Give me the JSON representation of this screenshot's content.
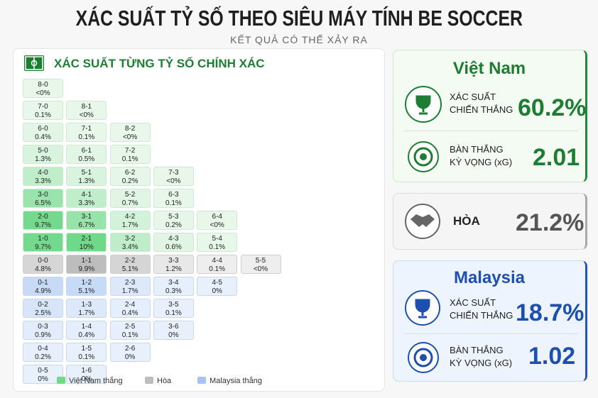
{
  "header": {
    "title": "XÁC SUẤT TỶ SỐ THEO SIÊU MÁY TÍNH BE SOCCER",
    "subtitle": "KẾT QUẢ CÓ THỂ XẢY RA"
  },
  "matrix": {
    "title": "XÁC SUẤT TỪNG TỶ SỐ CHÍNH XÁC",
    "cells": [
      {
        "score": "8-0",
        "pct": "<0%"
      },
      {
        "score": "7-0",
        "pct": "0.1%"
      },
      {
        "score": "6-0",
        "pct": "0.4%"
      },
      {
        "score": "5-0",
        "pct": "1.3%"
      },
      {
        "score": "4-0",
        "pct": "3.3%"
      },
      {
        "score": "3-0",
        "pct": "6.5%"
      },
      {
        "score": "2-0",
        "pct": "9.7%"
      },
      {
        "score": "1-0",
        "pct": "9.7%"
      },
      {
        "score": "0-0",
        "pct": "4.8%"
      },
      {
        "score": "0-1",
        "pct": "4.9%"
      },
      {
        "score": "0-2",
        "pct": "2.5%"
      },
      {
        "score": "0-3",
        "pct": "0.9%"
      },
      {
        "score": "0-4",
        "pct": "0.2%"
      },
      {
        "score": "0-5",
        "pct": "0%"
      },
      {
        "score": "8-1",
        "pct": "<0%"
      },
      {
        "score": "7-1",
        "pct": "0.1%"
      },
      {
        "score": "6-1",
        "pct": "0.5%"
      },
      {
        "score": "5-1",
        "pct": "1.3%"
      },
      {
        "score": "4-1",
        "pct": "3.3%"
      },
      {
        "score": "3-1",
        "pct": "6.7%"
      },
      {
        "score": "2-1",
        "pct": "10%"
      },
      {
        "score": "1-1",
        "pct": "9.9%"
      },
      {
        "score": "1-2",
        "pct": "5.1%"
      },
      {
        "score": "1-3",
        "pct": "1.7%"
      },
      {
        "score": "1-4",
        "pct": "0.4%"
      },
      {
        "score": "1-5",
        "pct": "0.1%"
      },
      {
        "score": "1-6",
        "pct": "0%"
      },
      {
        "score": "8-2",
        "pct": "<0%"
      },
      {
        "score": "7-2",
        "pct": "0.1%"
      },
      {
        "score": "6-2",
        "pct": "0.2%"
      },
      {
        "score": "5-2",
        "pct": "0.7%"
      },
      {
        "score": "4-2",
        "pct": "1.7%"
      },
      {
        "score": "3-2",
        "pct": "3.4%"
      },
      {
        "score": "2-2",
        "pct": "5.1%"
      },
      {
        "score": "2-3",
        "pct": "1.7%"
      },
      {
        "score": "2-4",
        "pct": "0.4%"
      },
      {
        "score": "2-5",
        "pct": "0.1%"
      },
      {
        "score": "2-6",
        "pct": "0%"
      },
      {
        "score": "7-3",
        "pct": "<0%"
      },
      {
        "score": "6-3",
        "pct": "0.1%"
      },
      {
        "score": "5-3",
        "pct": "0.2%"
      },
      {
        "score": "4-3",
        "pct": "0.6%"
      },
      {
        "score": "3-3",
        "pct": "1.2%"
      },
      {
        "score": "3-4",
        "pct": "0.3%"
      },
      {
        "score": "3-5",
        "pct": "0.1%"
      },
      {
        "score": "3-6",
        "pct": "0%"
      },
      {
        "score": "6-4",
        "pct": "<0%"
      },
      {
        "score": "5-4",
        "pct": "0.1%"
      },
      {
        "score": "4-4",
        "pct": "0.1%"
      },
      {
        "score": "4-5",
        "pct": "0%"
      },
      {
        "score": "5-5",
        "pct": "<0%"
      }
    ],
    "legend": [
      "Việt Nam thắng",
      "Hòa",
      "Malaysia thắng"
    ]
  },
  "vietnam": {
    "name": "Việt Nam",
    "win_label": [
      "XÁC SUẤT",
      "CHIẾN THẮNG"
    ],
    "win": "60.2%",
    "xg_label": [
      "BÀN THẮNG",
      "KỲ VỌNG (xG)"
    ],
    "xg": "2.01"
  },
  "draw": {
    "label": "HÒA",
    "value": "21.2%"
  },
  "malaysia": {
    "name": "Malaysia",
    "win_label": [
      "XÁC SUẤT",
      "CHIẾN THẮNG"
    ],
    "win": "18.7%",
    "xg_label": [
      "BÀN THẮNG",
      "KỲ VỌNG (xG)"
    ],
    "xg": "1.02"
  }
}
